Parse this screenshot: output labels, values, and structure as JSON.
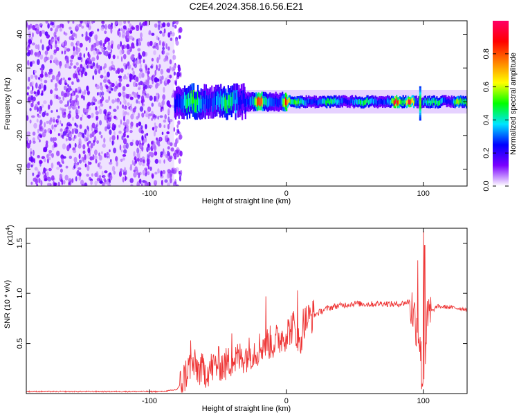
{
  "page": {
    "title": "C2E4.2024.358.16.56.E21"
  },
  "chart_data": [
    {
      "type": "heatmap",
      "title": "C2E4.2024.358.16.56.E21",
      "xlabel": "Height of straight line (km)",
      "ylabel": "Frequency (Hz)",
      "xlim": [
        -190,
        132
      ],
      "ylim": [
        -50,
        48
      ],
      "xticks": [
        -100,
        0,
        100
      ],
      "xtick_labels": [
        "-100",
        "0",
        "100"
      ],
      "yticks": [
        -40,
        -20,
        0,
        20,
        40
      ],
      "ytick_labels": [
        "-40",
        "-20",
        "0",
        "20",
        "40"
      ],
      "colorbar": {
        "label": "Normalized spectral amplitude",
        "range": [
          0,
          1
        ],
        "ticks": [
          0.0,
          0.2,
          0.4,
          0.6,
          0.8
        ],
        "tick_labels": [
          "0.0",
          "0.2",
          "0.4",
          "0.6",
          "0.8"
        ],
        "colors": [
          "#ffffff",
          "#7a00ff",
          "#0000ff",
          "#00e5ff",
          "#00ff00",
          "#ffff00",
          "#ff8000",
          "#ff0000",
          "#ff0066"
        ]
      },
      "regions": [
        {
          "x_range": [
            -190,
            -82
          ],
          "pattern": "broadband noise",
          "amplitude": 0.1
        },
        {
          "x_range": [
            -82,
            132
          ],
          "pattern": "narrow band near 0 Hz",
          "center_hz": 0,
          "peak_amplitude": 1.0
        }
      ],
      "band_peaks": [
        {
          "x": -20,
          "amplitude": 0.95
        },
        {
          "x": 0,
          "amplitude": 0.9
        },
        {
          "x": 80,
          "amplitude": 1.0
        },
        {
          "x": 90,
          "amplitude": 0.95
        },
        {
          "x": 125,
          "amplitude": 0.7
        }
      ]
    },
    {
      "type": "line",
      "xlabel": "Height of straight line (km)",
      "ylabel": "SNR (10 * v/v)",
      "y_multiplier_label": "(x10",
      "y_multiplier_exp": "4",
      "y_multiplier_close": ")",
      "xlim": [
        -190,
        132
      ],
      "ylim": [
        0,
        1.65
      ],
      "xticks": [
        -100,
        0,
        100
      ],
      "xtick_labels": [
        "-100",
        "0",
        "100"
      ],
      "yticks": [
        0.5,
        1.0,
        1.5
      ],
      "ytick_labels": [
        "0.5",
        "1.0",
        "1.5"
      ],
      "series": [
        {
          "color": "#ee3333",
          "x": [
            -190,
            -170,
            -150,
            -130,
            -110,
            -90,
            -80,
            -76,
            -70,
            -65,
            -60,
            -55,
            -50,
            -45,
            -40,
            -35,
            -30,
            -25,
            -20,
            -15,
            -10,
            -5,
            0,
            5,
            8,
            10,
            12,
            15,
            20,
            25,
            30,
            35,
            40,
            50,
            60,
            70,
            80,
            85,
            90,
            95,
            97,
            99,
            100,
            101,
            103,
            105,
            110,
            120,
            132
          ],
          "y": [
            0.02,
            0.02,
            0.02,
            0.02,
            0.02,
            0.02,
            0.04,
            0.12,
            0.3,
            0.25,
            0.22,
            0.25,
            0.3,
            0.28,
            0.33,
            0.35,
            0.38,
            0.42,
            0.45,
            0.52,
            0.5,
            0.55,
            0.6,
            0.68,
            0.55,
            0.45,
            0.7,
            0.74,
            0.78,
            0.82,
            0.85,
            0.87,
            0.88,
            0.9,
            0.89,
            0.9,
            0.89,
            0.9,
            0.92,
            0.7,
            0.6,
            0.2,
            0.15,
            0.4,
            0.7,
            0.8,
            0.87,
            0.86,
            0.84
          ]
        }
      ],
      "spikes": [
        {
          "x": -70,
          "y": 0.53
        },
        {
          "x": -40,
          "y": 0.6
        },
        {
          "x": -15,
          "y": 0.97
        },
        {
          "x": 8,
          "y": 1.03
        },
        {
          "x": 96,
          "y": 1.33
        },
        {
          "x": 100,
          "y": 1.62
        },
        {
          "x": 101,
          "y": 1.48
        }
      ]
    }
  ]
}
